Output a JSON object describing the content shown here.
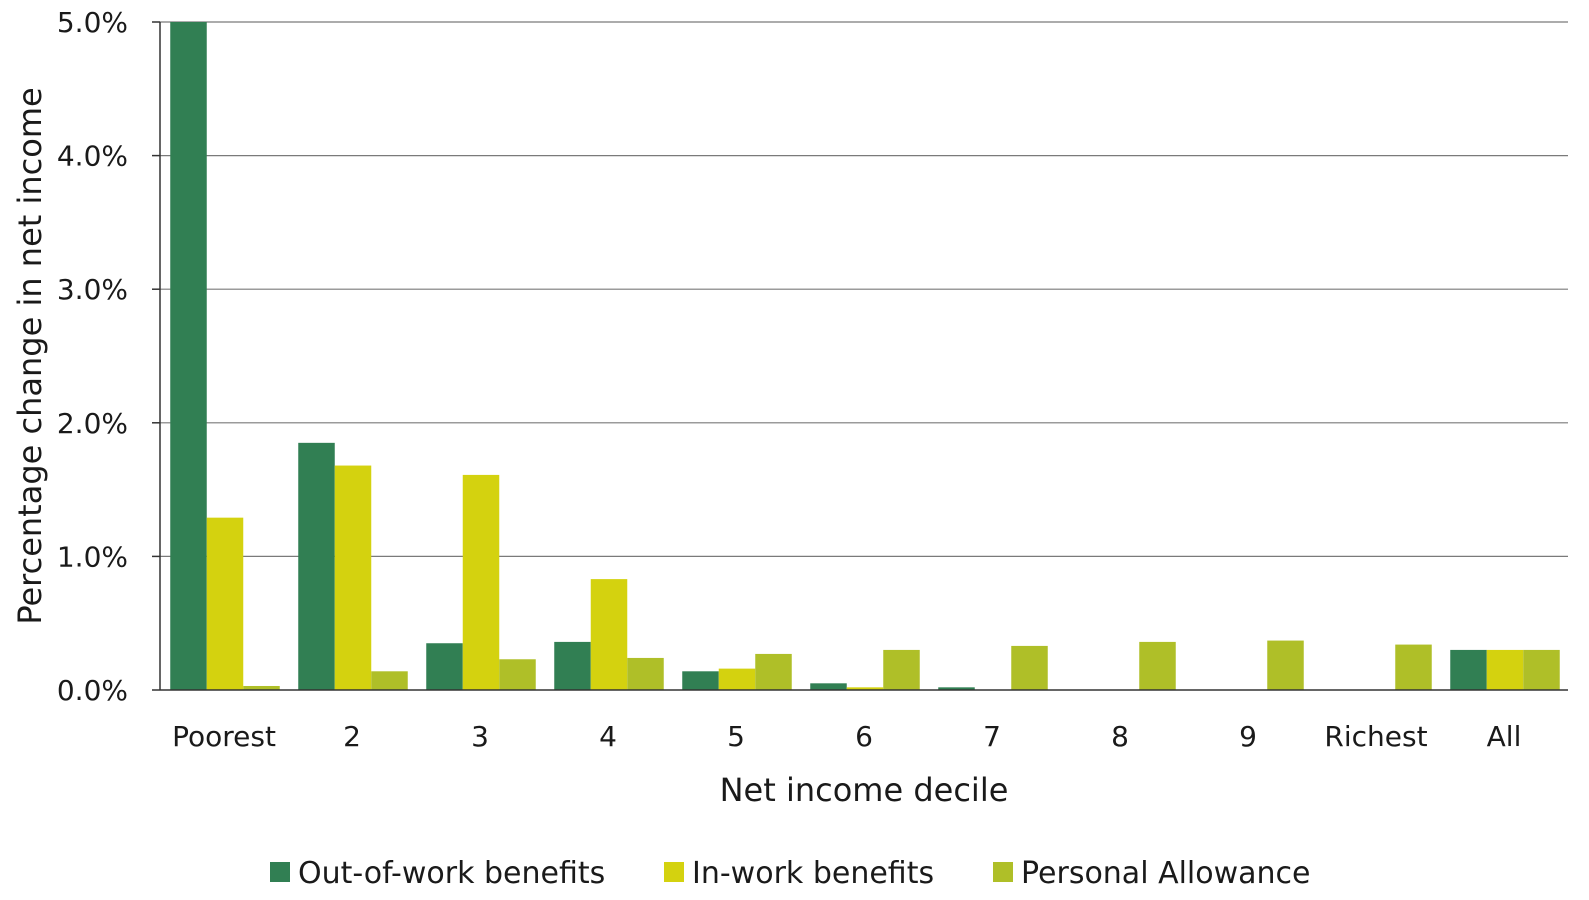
{
  "chart_data": {
    "type": "bar",
    "title": "",
    "xlabel": "Net income decile",
    "ylabel": "Percentage change in net income",
    "categories": [
      "Poorest",
      "2",
      "3",
      "4",
      "5",
      "6",
      "7",
      "8",
      "9",
      "Richest",
      "All"
    ],
    "series": [
      {
        "name": "Out-of-work benefits",
        "color": "#317f53",
        "values": [
          5.0,
          1.85,
          0.35,
          0.36,
          0.14,
          0.05,
          0.02,
          0.0,
          0.0,
          0.0,
          0.3
        ]
      },
      {
        "name": "In-work benefits",
        "color": "#d4d20f",
        "values": [
          1.29,
          1.68,
          1.61,
          0.83,
          0.16,
          0.02,
          0.0,
          0.0,
          0.0,
          0.0,
          0.3
        ]
      },
      {
        "name": "Personal Allowance",
        "color": "#afbf28",
        "values": [
          0.03,
          0.14,
          0.23,
          0.24,
          0.27,
          0.3,
          0.33,
          0.36,
          0.37,
          0.34,
          0.3
        ]
      }
    ],
    "ylim": [
      0,
      5
    ],
    "yticks": [
      0,
      1,
      2,
      3,
      4,
      5
    ],
    "ytick_labels": [
      "0.0%",
      "1.0%",
      "2.0%",
      "3.0%",
      "4.0%",
      "5.0%"
    ],
    "grid": true,
    "legend_position": "bottom"
  }
}
